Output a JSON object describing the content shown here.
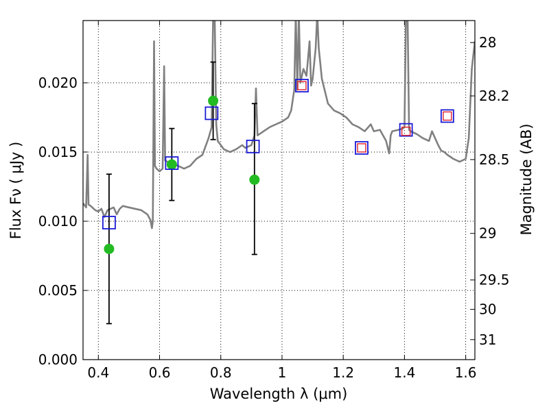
{
  "chart_data": {
    "type": "scatter",
    "title": "",
    "xlabel": "Wavelength  λ (μm)",
    "ylabel": "Flux  Fν  ( μJy )",
    "ylabel_right": "Magnitude (AB)",
    "xlim": [
      0.35,
      1.63
    ],
    "ylim": [
      0.0,
      0.0245
    ],
    "grid": true,
    "x_ticks": [
      {
        "value": 0.4,
        "label": "0.4"
      },
      {
        "value": 0.6,
        "label": "0.6"
      },
      {
        "value": 0.8,
        "label": "0.8"
      },
      {
        "value": 1.0,
        "label": "1"
      },
      {
        "value": 1.2,
        "label": "1.2"
      },
      {
        "value": 1.4,
        "label": "1.4"
      },
      {
        "value": 1.6,
        "label": "1.6"
      }
    ],
    "y_ticks": [
      {
        "value": 0.0,
        "label": "0.000"
      },
      {
        "value": 0.005,
        "label": "0.005"
      },
      {
        "value": 0.01,
        "label": "0.010"
      },
      {
        "value": 0.015,
        "label": "0.015"
      },
      {
        "value": 0.02,
        "label": "0.020"
      }
    ],
    "y2_ticks": [
      {
        "mag": 28,
        "label": "28"
      },
      {
        "mag": 28.2,
        "label": "28.2"
      },
      {
        "mag": 28.5,
        "label": "28.5"
      },
      {
        "mag": 29,
        "label": "29"
      },
      {
        "mag": 29.5,
        "label": "29.5"
      },
      {
        "mag": 30,
        "label": "30"
      },
      {
        "mag": 31,
        "label": "31"
      }
    ],
    "series": [
      {
        "kind": "line",
        "color": "#808080",
        "points": [
          [
            0.35,
            0.0113
          ],
          [
            0.36,
            0.011
          ],
          [
            0.365,
            0.0148
          ],
          [
            0.368,
            0.0112
          ],
          [
            0.375,
            0.0111
          ],
          [
            0.39,
            0.0108
          ],
          [
            0.4,
            0.0107
          ],
          [
            0.41,
            0.0109
          ],
          [
            0.42,
            0.0103
          ],
          [
            0.43,
            0.0108
          ],
          [
            0.45,
            0.011
          ],
          [
            0.46,
            0.0105
          ],
          [
            0.47,
            0.0109
          ],
          [
            0.48,
            0.0111
          ],
          [
            0.5,
            0.011
          ],
          [
            0.52,
            0.0109
          ],
          [
            0.54,
            0.0108
          ],
          [
            0.56,
            0.0105
          ],
          [
            0.57,
            0.0101
          ],
          [
            0.575,
            0.0095
          ],
          [
            0.578,
            0.01
          ],
          [
            0.582,
            0.023
          ],
          [
            0.585,
            0.014
          ],
          [
            0.59,
            0.0138
          ],
          [
            0.6,
            0.0136
          ],
          [
            0.61,
            0.0138
          ],
          [
            0.615,
            0.0212
          ],
          [
            0.618,
            0.0144
          ],
          [
            0.625,
            0.0143
          ],
          [
            0.64,
            0.0142
          ],
          [
            0.66,
            0.014
          ],
          [
            0.68,
            0.0138
          ],
          [
            0.7,
            0.014
          ],
          [
            0.72,
            0.0145
          ],
          [
            0.74,
            0.0148
          ],
          [
            0.76,
            0.016
          ],
          [
            0.77,
            0.0168
          ],
          [
            0.775,
            0.025
          ],
          [
            0.78,
            0.025
          ],
          [
            0.785,
            0.017
          ],
          [
            0.79,
            0.0158
          ],
          [
            0.81,
            0.0152
          ],
          [
            0.83,
            0.015
          ],
          [
            0.85,
            0.0152
          ],
          [
            0.87,
            0.0155
          ],
          [
            0.88,
            0.0153
          ],
          [
            0.9,
            0.0155
          ],
          [
            0.91,
            0.0162
          ],
          [
            0.915,
            0.0196
          ],
          [
            0.92,
            0.0162
          ],
          [
            0.94,
            0.0165
          ],
          [
            0.96,
            0.0168
          ],
          [
            0.98,
            0.017
          ],
          [
            1.0,
            0.0172
          ],
          [
            1.02,
            0.0175
          ],
          [
            1.03,
            0.018
          ],
          [
            1.04,
            0.0195
          ],
          [
            1.045,
            0.025
          ],
          [
            1.05,
            0.0195
          ],
          [
            1.055,
            0.025
          ],
          [
            1.06,
            0.02
          ],
          [
            1.07,
            0.021
          ],
          [
            1.08,
            0.0205
          ],
          [
            1.09,
            0.023
          ],
          [
            1.095,
            0.0198
          ],
          [
            1.1,
            0.0203
          ],
          [
            1.11,
            0.0225
          ],
          [
            1.115,
            0.025
          ],
          [
            1.12,
            0.0225
          ],
          [
            1.13,
            0.0203
          ],
          [
            1.15,
            0.0185
          ],
          [
            1.17,
            0.018
          ],
          [
            1.19,
            0.0178
          ],
          [
            1.21,
            0.0175
          ],
          [
            1.23,
            0.017
          ],
          [
            1.25,
            0.0168
          ],
          [
            1.27,
            0.0165
          ],
          [
            1.29,
            0.017
          ],
          [
            1.3,
            0.0165
          ],
          [
            1.32,
            0.0166
          ],
          [
            1.34,
            0.0158
          ],
          [
            1.35,
            0.0149
          ],
          [
            1.355,
            0.0162
          ],
          [
            1.36,
            0.0165
          ],
          [
            1.38,
            0.0166
          ],
          [
            1.395,
            0.0167
          ],
          [
            1.4,
            0.0168
          ],
          [
            1.405,
            0.025
          ],
          [
            1.41,
            0.025
          ],
          [
            1.415,
            0.0166
          ],
          [
            1.42,
            0.0165
          ],
          [
            1.44,
            0.0163
          ],
          [
            1.46,
            0.016
          ],
          [
            1.48,
            0.0158
          ],
          [
            1.49,
            0.0165
          ],
          [
            1.5,
            0.016
          ],
          [
            1.51,
            0.0155
          ],
          [
            1.52,
            0.0151
          ],
          [
            1.53,
            0.015
          ],
          [
            1.54,
            0.0148
          ],
          [
            1.56,
            0.0145
          ],
          [
            1.58,
            0.0143
          ],
          [
            1.6,
            0.0145
          ],
          [
            1.61,
            0.016
          ],
          [
            1.62,
            0.021
          ],
          [
            1.63,
            0.023
          ]
        ]
      },
      {
        "kind": "errorbar",
        "color": "#000000",
        "points": [
          {
            "x": 0.435,
            "y": 0.008,
            "lo": 0.0026,
            "hi": 0.0134
          },
          {
            "x": 0.64,
            "y": 0.0141,
            "lo": 0.0115,
            "hi": 0.0167
          },
          {
            "x": 0.775,
            "y": 0.0187,
            "lo": 0.0159,
            "hi": 0.0215
          },
          {
            "x": 0.91,
            "y": 0.013,
            "lo": 0.0076,
            "hi": 0.0185
          }
        ]
      },
      {
        "kind": "circle",
        "color": "#22bb22",
        "points": [
          [
            0.435,
            0.008
          ],
          [
            0.64,
            0.0141
          ],
          [
            0.775,
            0.0187
          ],
          [
            0.91,
            0.013
          ]
        ]
      },
      {
        "kind": "square",
        "color": "#1a1ad6",
        "points": [
          [
            0.435,
            0.0099
          ],
          [
            0.64,
            0.0142
          ],
          [
            0.77,
            0.0178
          ],
          [
            0.905,
            0.0154
          ],
          [
            1.065,
            0.0198
          ],
          [
            1.26,
            0.0153
          ],
          [
            1.405,
            0.0166
          ],
          [
            1.54,
            0.0176
          ]
        ]
      },
      {
        "kind": "square-small",
        "color": "#e0202a",
        "points": [
          [
            1.065,
            0.0198
          ],
          [
            1.26,
            0.0153
          ],
          [
            1.405,
            0.0165
          ],
          [
            1.54,
            0.0176
          ]
        ]
      }
    ]
  }
}
